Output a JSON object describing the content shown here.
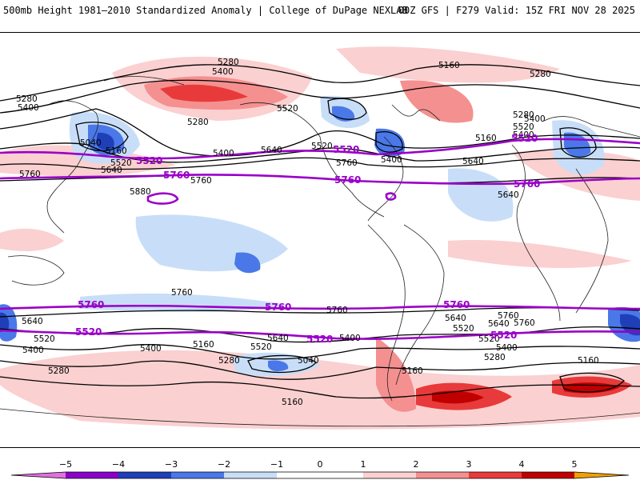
{
  "header": {
    "left": "500mb Height 1981–2010 Standardized Anomaly | College of DuPage NEXLAB",
    "right": "00Z GFS | F279 Valid: 15Z FRI NOV 28 2025"
  },
  "colors": {
    "neg5": "#e070e0",
    "neg4": "#8a00c8",
    "neg3": "#1f3fb8",
    "neg2": "#4a78e8",
    "neg1": "#c8def8",
    "zero": "#ffffff",
    "pos1": "#fbd0d0",
    "pos2": "#f59090",
    "pos3": "#e83a3a",
    "pos4": "#c00000",
    "pos5": "#f0a000",
    "contour": "#000000",
    "highlight": "#9a00c8",
    "coast": "#222222"
  },
  "colorbar": {
    "ticks": [
      "−5",
      "−4",
      "−3",
      "−2",
      "−1",
      "0",
      "1",
      "2",
      "3",
      "4",
      "5"
    ]
  },
  "contour_labels": {
    "black": [
      "5280",
      "5400",
      "5160",
      "5280",
      "5280",
      "5400",
      "5520",
      "5280",
      "5400",
      "5040",
      "5160",
      "5520",
      "5640",
      "5760",
      "5760",
      "5880",
      "5400",
      "5640",
      "5520",
      "5400",
      "5760",
      "5640",
      "5160",
      "5280",
      "5520",
      "5400",
      "5640",
      "5760",
      "5760",
      "5640",
      "5520",
      "5400",
      "5280",
      "5160",
      "5280",
      "5400",
      "5520",
      "5640",
      "5040",
      "5400",
      "5520",
      "5640",
      "5760",
      "5160",
      "5160",
      "5760",
      "5640",
      "5520",
      "5400",
      "5280",
      "5160"
    ],
    "purple": [
      "5520",
      "5760",
      "5520",
      "5760",
      "5520",
      "5760",
      "5760",
      "5760",
      "5760",
      "5520",
      "5520",
      "5520"
    ]
  }
}
